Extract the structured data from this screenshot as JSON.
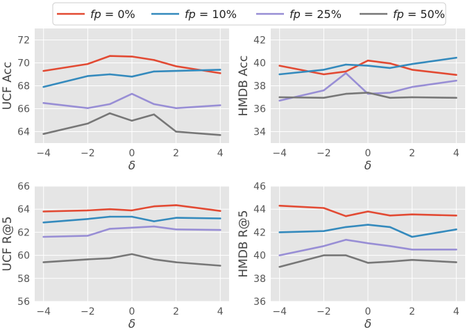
{
  "legend": [
    {
      "prefix": "fp",
      "text": " = 0%",
      "color": "#E24A33"
    },
    {
      "prefix": "fp",
      "text": " = 10%",
      "color": "#348ABD"
    },
    {
      "prefix": "fp",
      "text": " = 25%",
      "color": "#988ED5"
    },
    {
      "prefix": "fp",
      "text": " = 50%",
      "color": "#777777"
    }
  ],
  "chart_data": [
    {
      "type": "line",
      "xlabel": "δ",
      "ylabel": "UCF Acc",
      "x": [
        -4,
        -2,
        -1,
        0,
        1,
        2,
        4
      ],
      "xticks": [
        "−4",
        "−2",
        "0",
        "2",
        "4"
      ],
      "yticks": [
        "64",
        "66",
        "68",
        "70",
        "72"
      ],
      "ylim": [
        63.0,
        73.0
      ],
      "grid": true,
      "series": [
        {
          "name": "fp = 0%",
          "color": "#E24A33",
          "values": [
            69.3,
            69.9,
            70.6,
            70.55,
            70.25,
            69.7,
            69.1
          ]
        },
        {
          "name": "fp = 10%",
          "color": "#348ABD",
          "values": [
            67.9,
            68.85,
            69.0,
            68.8,
            69.25,
            69.3,
            69.4
          ]
        },
        {
          "name": "fp = 25%",
          "color": "#988ED5",
          "values": [
            66.5,
            66.05,
            66.4,
            67.3,
            66.4,
            66.05,
            66.3
          ]
        },
        {
          "name": "fp = 50%",
          "color": "#777777",
          "values": [
            63.8,
            64.7,
            65.6,
            64.95,
            65.5,
            64.0,
            63.7
          ]
        }
      ]
    },
    {
      "type": "line",
      "xlabel": "δ",
      "ylabel": "HMDB Acc",
      "x": [
        -4,
        -2,
        -1,
        0,
        1,
        2,
        4
      ],
      "xticks": [
        "−4",
        "−2",
        "0",
        "2",
        "4"
      ],
      "yticks": [
        "34",
        "36",
        "38",
        "40",
        "42"
      ],
      "ylim": [
        33.0,
        43.0
      ],
      "grid": true,
      "series": [
        {
          "name": "fp = 0%",
          "color": "#E24A33",
          "values": [
            39.75,
            39.0,
            39.25,
            40.2,
            39.95,
            39.4,
            38.95
          ]
        },
        {
          "name": "fp = 10%",
          "color": "#348ABD",
          "values": [
            39.0,
            39.4,
            39.85,
            39.75,
            39.55,
            39.9,
            40.45
          ]
        },
        {
          "name": "fp = 25%",
          "color": "#988ED5",
          "values": [
            36.7,
            37.6,
            39.1,
            37.3,
            37.4,
            37.9,
            38.45
          ]
        },
        {
          "name": "fp = 50%",
          "color": "#777777",
          "values": [
            37.0,
            36.95,
            37.3,
            37.4,
            36.95,
            37.0,
            36.95
          ]
        }
      ]
    },
    {
      "type": "line",
      "xlabel": "δ",
      "ylabel": "UCF R@5",
      "x": [
        -4,
        -2,
        -1,
        0,
        1,
        2,
        4
      ],
      "xticks": [
        "−4",
        "−2",
        "0",
        "2",
        "4"
      ],
      "yticks": [
        "56",
        "58",
        "60",
        "62",
        "64",
        "66"
      ],
      "ylim": [
        56.0,
        66.0
      ],
      "grid": true,
      "series": [
        {
          "name": "fp = 0%",
          "color": "#E24A33",
          "values": [
            63.8,
            63.9,
            64.0,
            63.9,
            64.25,
            64.35,
            63.85
          ]
        },
        {
          "name": "fp = 10%",
          "color": "#348ABD",
          "values": [
            62.85,
            63.15,
            63.35,
            63.35,
            62.95,
            63.25,
            63.2
          ]
        },
        {
          "name": "fp = 25%",
          "color": "#988ED5",
          "values": [
            61.6,
            61.7,
            62.3,
            62.4,
            62.5,
            62.25,
            62.2
          ]
        },
        {
          "name": "fp = 50%",
          "color": "#777777",
          "values": [
            59.4,
            59.65,
            59.75,
            60.1,
            59.65,
            59.4,
            59.1
          ]
        }
      ]
    },
    {
      "type": "line",
      "xlabel": "δ",
      "ylabel": "HMDB R@5",
      "x": [
        -4,
        -2,
        -1,
        0,
        1,
        2,
        4
      ],
      "xticks": [
        "−4",
        "−2",
        "0",
        "2",
        "4"
      ],
      "yticks": [
        "36",
        "38",
        "40",
        "42",
        "44",
        "46"
      ],
      "ylim": [
        36.0,
        46.0
      ],
      "grid": true,
      "series": [
        {
          "name": "fp = 0%",
          "color": "#E24A33",
          "values": [
            44.3,
            44.1,
            43.4,
            43.8,
            43.45,
            43.55,
            43.45
          ]
        },
        {
          "name": "fp = 10%",
          "color": "#348ABD",
          "values": [
            42.0,
            42.1,
            42.45,
            42.65,
            42.45,
            41.6,
            42.25
          ]
        },
        {
          "name": "fp = 25%",
          "color": "#988ED5",
          "values": [
            40.0,
            40.8,
            41.35,
            41.05,
            40.8,
            40.5,
            40.5
          ]
        },
        {
          "name": "fp = 50%",
          "color": "#777777",
          "values": [
            39.0,
            40.0,
            40.0,
            39.35,
            39.45,
            39.6,
            39.4
          ]
        }
      ]
    }
  ]
}
